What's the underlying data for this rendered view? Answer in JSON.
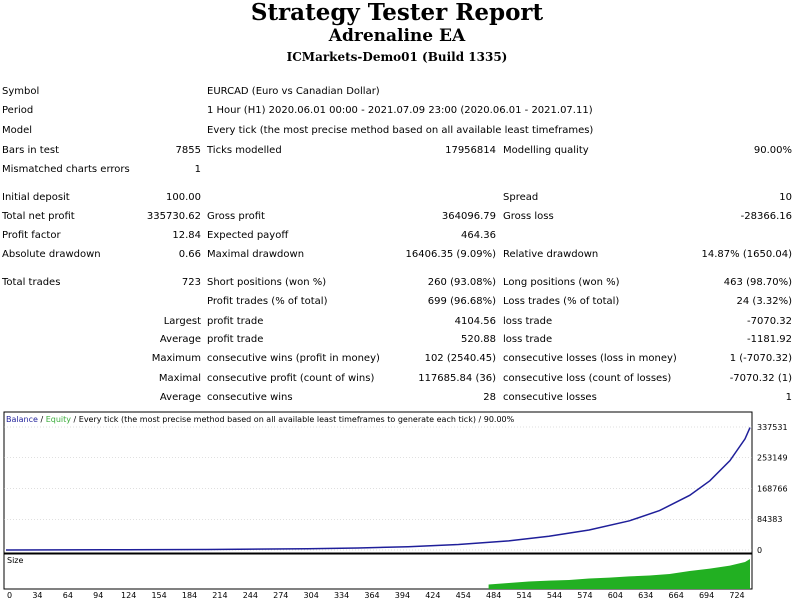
{
  "header": {
    "title": "Strategy Tester Report",
    "ea_name": "Adrenaline EA",
    "server": "ICMarkets-Demo01 (Build 1335)"
  },
  "info": {
    "symbol_label": "Symbol",
    "symbol_value": "EURCAD (Euro vs Canadian Dollar)",
    "period_label": "Period",
    "period_value": "1 Hour (H1) 2020.06.01 00:00 - 2021.07.09 23:00 (2020.06.01 - 2021.07.11)",
    "model_label": "Model",
    "model_value": "Every tick (the most precise method based on all available least timeframes)",
    "bars_label": "Bars in test",
    "bars_value": "7855",
    "ticks_label": "Ticks modelled",
    "ticks_value": "17956814",
    "quality_label": "Modelling quality",
    "quality_value": "90.00%",
    "mismatch_label": "Mismatched charts errors",
    "mismatch_value": "1"
  },
  "stats": {
    "initial_deposit_label": "Initial deposit",
    "initial_deposit_value": "100.00",
    "spread_label": "Spread",
    "spread_value": "10",
    "net_profit_label": "Total net profit",
    "net_profit_value": "335730.62",
    "gross_profit_label": "Gross profit",
    "gross_profit_value": "364096.79",
    "gross_loss_label": "Gross loss",
    "gross_loss_value": "-28366.16",
    "profit_factor_label": "Profit factor",
    "profit_factor_value": "12.84",
    "expected_payoff_label": "Expected payoff",
    "expected_payoff_value": "464.36",
    "abs_dd_label": "Absolute drawdown",
    "abs_dd_value": "0.66",
    "max_dd_label": "Maximal drawdown",
    "max_dd_value": "16406.35 (9.09%)",
    "rel_dd_label": "Relative drawdown",
    "rel_dd_value": "14.87% (1650.04)"
  },
  "trades": {
    "total_label": "Total trades",
    "total_value": "723",
    "short_label": "Short positions (won %)",
    "short_value": "260 (93.08%)",
    "long_label": "Long positions (won %)",
    "long_value": "463 (98.70%)",
    "profit_trades_label": "Profit trades (% of total)",
    "profit_trades_value": "699 (96.68%)",
    "loss_trades_label": "Loss trades (% of total)",
    "loss_trades_value": "24 (3.32%)",
    "largest_label": "Largest",
    "largest_profit_label": "profit trade",
    "largest_profit_value": "4104.56",
    "largest_loss_label": "loss trade",
    "largest_loss_value": "-7070.32",
    "average_label": "Average",
    "average_profit_label": "profit trade",
    "average_profit_value": "520.88",
    "average_loss_label": "loss trade",
    "average_loss_value": "-1181.92",
    "maximum_label": "Maximum",
    "max_wins_label": "consecutive wins (profit in money)",
    "max_wins_value": "102 (2540.45)",
    "max_losses_label": "consecutive losses (loss in money)",
    "max_losses_value": "1 (-7070.32)",
    "maximal_label": "Maximal",
    "max_profit_label": "consecutive profit (count of wins)",
    "max_profit_value": "117685.84 (36)",
    "max_loss_label": "consecutive loss (count of losses)",
    "max_loss_value": "-7070.32 (1)",
    "average2_label": "Average",
    "avg_wins_label": "consecutive wins",
    "avg_wins_value": "28",
    "avg_losses_label": "consecutive losses",
    "avg_losses_value": "1"
  },
  "chart_data": {
    "type": "line",
    "legend": {
      "balance": "Balance",
      "sep": " / ",
      "equity": "Equity",
      "desc": " / Every tick (the most precise method based on all available least timeframes to generate each tick) / 90.00%"
    },
    "size_label": "Size",
    "y_ticks": [
      "337531",
      "253149",
      "168766",
      "84383",
      "0"
    ],
    "y_tick_values": [
      337531,
      253149,
      168766,
      84383,
      0
    ],
    "ylim": [
      0,
      337531
    ],
    "x_ticks": [
      "0",
      "34",
      "64",
      "94",
      "124",
      "154",
      "184",
      "214",
      "244",
      "274",
      "304",
      "334",
      "364",
      "394",
      "424",
      "454",
      "484",
      "514",
      "544",
      "574",
      "604",
      "634",
      "664",
      "694",
      "724"
    ],
    "xlim": [
      0,
      740
    ],
    "series": [
      {
        "name": "Balance",
        "color": "#1f1f9a",
        "x": [
          0,
          100,
          200,
          300,
          350,
          400,
          450,
          500,
          540,
          580,
          620,
          650,
          680,
          700,
          720,
          735,
          740
        ],
        "values": [
          100,
          500,
          1500,
          3500,
          5500,
          9000,
          15000,
          25000,
          38000,
          55000,
          80000,
          108000,
          150000,
          190000,
          245000,
          305000,
          335830
        ]
      }
    ],
    "size_series": {
      "name": "Size",
      "color": "#22b022",
      "x": [
        480,
        500,
        520,
        540,
        560,
        580,
        600,
        620,
        640,
        660,
        680,
        700,
        720,
        735,
        740
      ],
      "values": [
        0.15,
        0.2,
        0.25,
        0.28,
        0.3,
        0.35,
        0.38,
        0.42,
        0.45,
        0.5,
        0.6,
        0.68,
        0.78,
        0.9,
        1.0
      ]
    },
    "colors": {
      "balance": "#1f1f9a",
      "equity": "#3cad3c",
      "size": "#22b022",
      "grid": "#c0c0c0"
    }
  }
}
